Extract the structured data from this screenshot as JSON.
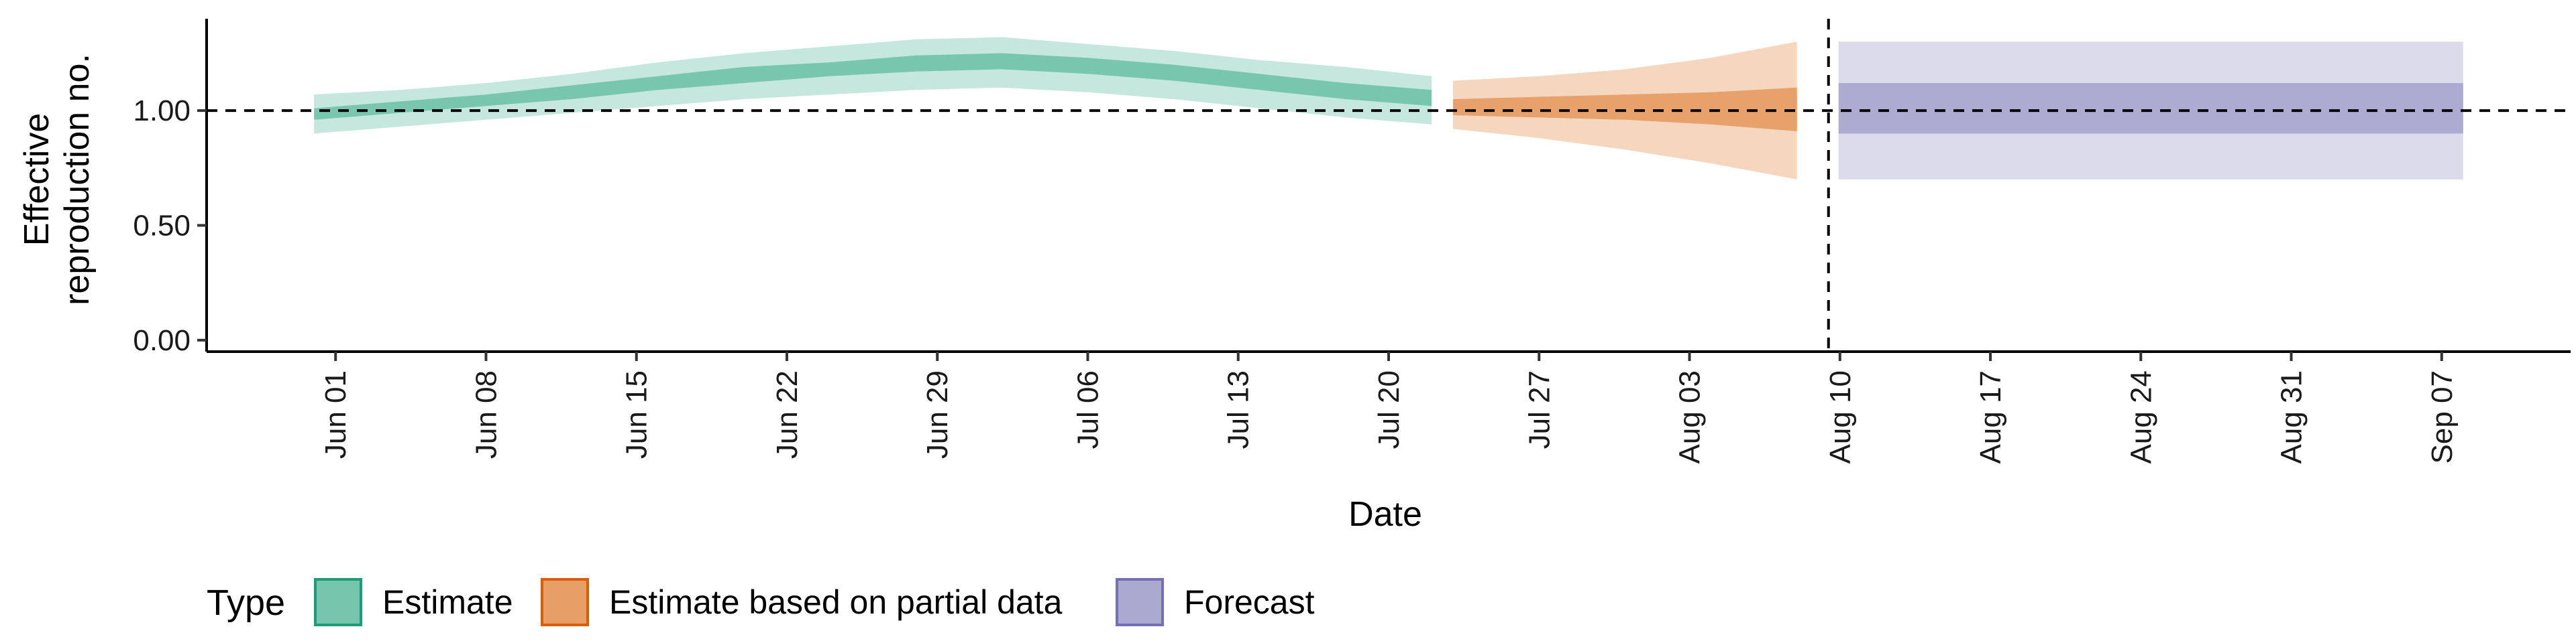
{
  "chart_data": {
    "type": "area",
    "title": "",
    "xlabel": "Date",
    "ylabel_lines": [
      "Effective",
      "reproduction no."
    ],
    "x_range": [
      "2020-05-26",
      "2020-09-13"
    ],
    "ylim": [
      -0.05,
      1.4
    ],
    "y_ticks": [
      0.0,
      0.5,
      1.0
    ],
    "y_tick_labels": [
      "0.00",
      "0.50",
      "1.00"
    ],
    "x_ticks": [
      "2020-06-01",
      "2020-06-08",
      "2020-06-15",
      "2020-06-22",
      "2020-06-29",
      "2020-07-06",
      "2020-07-13",
      "2020-07-20",
      "2020-07-27",
      "2020-08-03",
      "2020-08-10",
      "2020-08-17",
      "2020-08-24",
      "2020-08-31",
      "2020-09-07"
    ],
    "x_tick_labels": [
      "Jun 01",
      "Jun 08",
      "Jun 15",
      "Jun 22",
      "Jun 29",
      "Jul 06",
      "Jul 13",
      "Jul 20",
      "Jul 27",
      "Aug 03",
      "Aug 10",
      "Aug 17",
      "Aug 24",
      "Aug 31",
      "Sep 07"
    ],
    "grid": false,
    "reference_hline": 1.0,
    "reference_vline": "2020-08-09",
    "legend_position": "bottom-left",
    "legend_title": "Type",
    "series": [
      {
        "name": "Estimate",
        "color": "#1b9e77",
        "points": [
          {
            "x": "2020-05-31",
            "lo90": 0.9,
            "lo50": 0.96,
            "med": 0.99,
            "hi50": 1.01,
            "hi90": 1.07
          },
          {
            "x": "2020-06-04",
            "lo90": 0.93,
            "lo50": 0.99,
            "med": 1.01,
            "hi50": 1.04,
            "hi90": 1.09
          },
          {
            "x": "2020-06-08",
            "lo90": 0.96,
            "lo50": 1.02,
            "med": 1.05,
            "hi50": 1.07,
            "hi90": 1.12
          },
          {
            "x": "2020-06-12",
            "lo90": 0.99,
            "lo50": 1.05,
            "med": 1.08,
            "hi50": 1.11,
            "hi90": 1.16
          },
          {
            "x": "2020-06-16",
            "lo90": 1.02,
            "lo50": 1.09,
            "med": 1.12,
            "hi50": 1.15,
            "hi90": 1.21
          },
          {
            "x": "2020-06-20",
            "lo90": 1.05,
            "lo50": 1.12,
            "med": 1.16,
            "hi50": 1.19,
            "hi90": 1.25
          },
          {
            "x": "2020-06-24",
            "lo90": 1.07,
            "lo50": 1.15,
            "med": 1.18,
            "hi50": 1.21,
            "hi90": 1.28
          },
          {
            "x": "2020-06-28",
            "lo90": 1.09,
            "lo50": 1.17,
            "med": 1.21,
            "hi50": 1.24,
            "hi90": 1.31
          },
          {
            "x": "2020-07-02",
            "lo90": 1.1,
            "lo50": 1.18,
            "med": 1.22,
            "hi50": 1.25,
            "hi90": 1.32
          },
          {
            "x": "2020-07-06",
            "lo90": 1.08,
            "lo50": 1.16,
            "med": 1.2,
            "hi50": 1.23,
            "hi90": 1.29
          },
          {
            "x": "2020-07-10",
            "lo90": 1.05,
            "lo50": 1.13,
            "med": 1.17,
            "hi50": 1.2,
            "hi90": 1.26
          },
          {
            "x": "2020-07-14",
            "lo90": 1.01,
            "lo50": 1.09,
            "med": 1.13,
            "hi50": 1.16,
            "hi90": 1.22
          },
          {
            "x": "2020-07-18",
            "lo90": 0.97,
            "lo50": 1.05,
            "med": 1.08,
            "hi50": 1.12,
            "hi90": 1.19
          },
          {
            "x": "2020-07-22",
            "lo90": 0.94,
            "lo50": 1.02,
            "med": 1.05,
            "hi50": 1.09,
            "hi90": 1.15
          }
        ]
      },
      {
        "name": "Estimate based on partial data",
        "color": "#d95f02",
        "points": [
          {
            "x": "2020-07-23",
            "lo90": 0.92,
            "lo50": 0.98,
            "med": 1.02,
            "hi50": 1.05,
            "hi90": 1.13
          },
          {
            "x": "2020-07-27",
            "lo90": 0.88,
            "lo50": 0.97,
            "med": 1.01,
            "hi50": 1.06,
            "hi90": 1.15
          },
          {
            "x": "2020-07-31",
            "lo90": 0.83,
            "lo50": 0.96,
            "med": 1.01,
            "hi50": 1.07,
            "hi90": 1.18
          },
          {
            "x": "2020-08-04",
            "lo90": 0.77,
            "lo50": 0.94,
            "med": 1.0,
            "hi50": 1.08,
            "hi90": 1.23
          },
          {
            "x": "2020-08-08",
            "lo90": 0.7,
            "lo50": 0.91,
            "med": 1.0,
            "hi50": 1.1,
            "hi90": 1.3
          }
        ]
      },
      {
        "name": "Forecast",
        "color": "#7570b3",
        "points": [
          {
            "x": "2020-08-09",
            "lo90": 0.7,
            "lo50": 0.9,
            "med": 1.0,
            "hi50": 1.12,
            "hi90": 1.3
          },
          {
            "x": "2020-09-08",
            "lo90": 0.7,
            "lo50": 0.9,
            "med": 1.0,
            "hi50": 1.12,
            "hi90": 1.3
          }
        ]
      }
    ]
  }
}
